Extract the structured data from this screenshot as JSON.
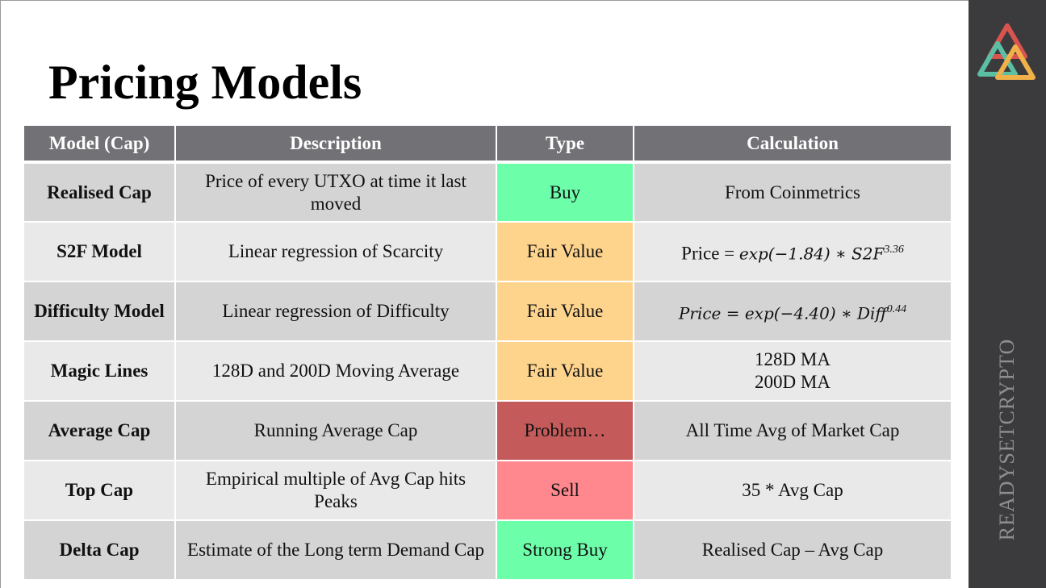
{
  "title": "Pricing Models",
  "brand": "READYSETCRYPTO",
  "colors": {
    "header_bg": "#727175",
    "sidebar_bg": "#3b3b3d",
    "buy": "#6dfeaa",
    "fair_value": "#fed48d",
    "problem": "#c45a5a",
    "sell": "#fe888e"
  },
  "table": {
    "headers": [
      "Model (Cap)",
      "Description",
      "Type",
      "Calculation"
    ],
    "rows": [
      {
        "model": "Realised Cap",
        "description": "Price of every UTXO at time it last moved",
        "type": "Buy",
        "calc": "From Coinmetrics"
      },
      {
        "model": "S2F Model",
        "description": "Linear regression of Scarcity",
        "type": "Fair Value",
        "calc_prefix": "Price = ",
        "calc_expr": "exp(−1.84) ∗ S2F",
        "calc_exp": "3.36"
      },
      {
        "model": "Difficulty Model",
        "description": "Linear regression of Difficulty",
        "type": "Fair Value",
        "calc_expr": "Price =  exp(−4.40) ∗ Diff",
        "calc_exp": "0.44"
      },
      {
        "model": "Magic Lines",
        "description": "128D and 200D Moving Average",
        "type": "Fair Value",
        "calc_line1": "128D MA",
        "calc_line2": "200D MA"
      },
      {
        "model": "Average Cap",
        "description": "Running Average Cap",
        "type": "Problem…",
        "calc": "All Time Avg of Market Cap"
      },
      {
        "model": "Top Cap",
        "description": "Empirical multiple of Avg Cap hits Peaks",
        "type": "Sell",
        "calc": "35 * Avg Cap"
      },
      {
        "model": "Delta Cap",
        "description": "Estimate of the Long term Demand Cap",
        "type": "Strong Buy",
        "calc": "Realised Cap – Avg Cap"
      }
    ]
  }
}
